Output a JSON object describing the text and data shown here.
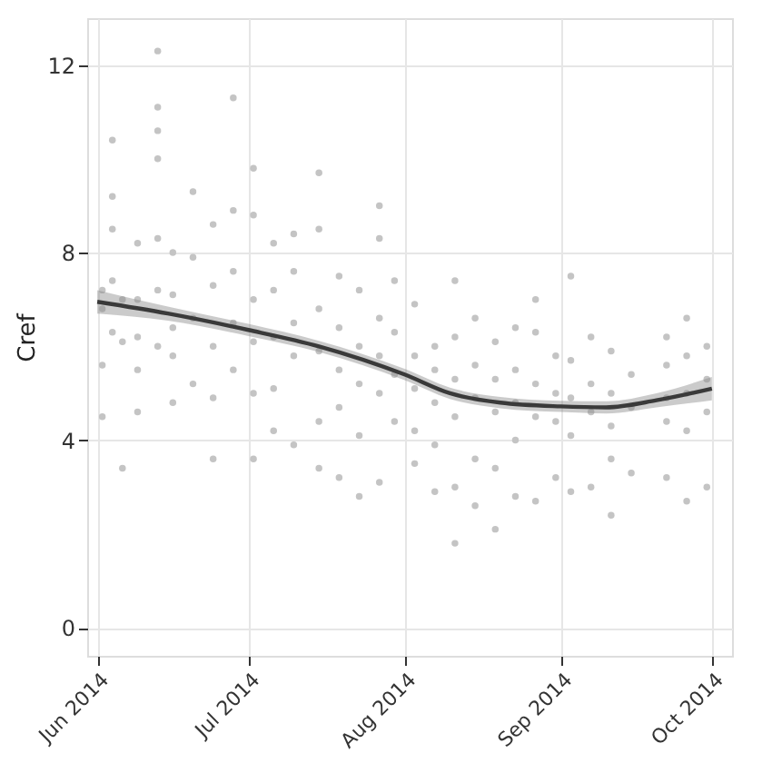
{
  "chart_data": {
    "type": "scatter",
    "ylabel": "Cref",
    "xlim": [
      "2014-05-30",
      "2014-10-05"
    ],
    "ylim": [
      -0.6,
      13.0
    ],
    "xticks": [
      {
        "value": "2014-06-01",
        "label": "Jun 2014"
      },
      {
        "value": "2014-07-01",
        "label": "Jul 2014"
      },
      {
        "value": "2014-08-01",
        "label": "Aug 2014"
      },
      {
        "value": "2014-09-01",
        "label": "Sep 2014"
      },
      {
        "value": "2014-10-01",
        "label": "Oct 2014"
      }
    ],
    "yticks": [
      0,
      4,
      8,
      12
    ],
    "grid": true,
    "series": [
      {
        "type": "scatter",
        "marker": "circle",
        "color": "#c4c4c4",
        "x": [
          "2014-06-02",
          "2014-06-02",
          "2014-06-02",
          "2014-06-02",
          "2014-06-04",
          "2014-06-04",
          "2014-06-04",
          "2014-06-04",
          "2014-06-04",
          "2014-06-06",
          "2014-06-06",
          "2014-06-06",
          "2014-06-09",
          "2014-06-09",
          "2014-06-09",
          "2014-06-09",
          "2014-06-09",
          "2014-06-13",
          "2014-06-13",
          "2014-06-13",
          "2014-06-13",
          "2014-06-13",
          "2014-06-13",
          "2014-06-13",
          "2014-06-16",
          "2014-06-16",
          "2014-06-16",
          "2014-06-16",
          "2014-06-16",
          "2014-06-20",
          "2014-06-20",
          "2014-06-20",
          "2014-06-20",
          "2014-06-24",
          "2014-06-24",
          "2014-06-24",
          "2014-06-24",
          "2014-06-24",
          "2014-06-28",
          "2014-06-28",
          "2014-06-28",
          "2014-06-28",
          "2014-06-28",
          "2014-07-02",
          "2014-07-02",
          "2014-07-02",
          "2014-07-02",
          "2014-07-02",
          "2014-07-02",
          "2014-07-06",
          "2014-07-06",
          "2014-07-06",
          "2014-07-06",
          "2014-07-06",
          "2014-07-10",
          "2014-07-10",
          "2014-07-10",
          "2014-07-10",
          "2014-07-10",
          "2014-07-15",
          "2014-07-15",
          "2014-07-15",
          "2014-07-15",
          "2014-07-15",
          "2014-07-15",
          "2014-07-19",
          "2014-07-19",
          "2014-07-19",
          "2014-07-19",
          "2014-07-19",
          "2014-07-23",
          "2014-07-23",
          "2014-07-23",
          "2014-07-23",
          "2014-07-23",
          "2014-07-27",
          "2014-07-27",
          "2014-07-27",
          "2014-07-27",
          "2014-07-27",
          "2014-07-27",
          "2014-07-30",
          "2014-07-30",
          "2014-07-30",
          "2014-07-30",
          "2014-08-03",
          "2014-08-03",
          "2014-08-03",
          "2014-08-03",
          "2014-08-03",
          "2014-08-07",
          "2014-08-07",
          "2014-08-07",
          "2014-08-07",
          "2014-08-07",
          "2014-08-11",
          "2014-08-11",
          "2014-08-11",
          "2014-08-11",
          "2014-08-11",
          "2014-08-11",
          "2014-08-15",
          "2014-08-15",
          "2014-08-15",
          "2014-08-15",
          "2014-08-15",
          "2014-08-19",
          "2014-08-19",
          "2014-08-19",
          "2014-08-19",
          "2014-08-19",
          "2014-08-23",
          "2014-08-23",
          "2014-08-23",
          "2014-08-23",
          "2014-08-23",
          "2014-08-27",
          "2014-08-27",
          "2014-08-27",
          "2014-08-27",
          "2014-08-27",
          "2014-08-31",
          "2014-08-31",
          "2014-08-31",
          "2014-08-31",
          "2014-09-03",
          "2014-09-03",
          "2014-09-03",
          "2014-09-03",
          "2014-09-03",
          "2014-09-07",
          "2014-09-07",
          "2014-09-07",
          "2014-09-07",
          "2014-09-11",
          "2014-09-11",
          "2014-09-11",
          "2014-09-11",
          "2014-09-11",
          "2014-09-15",
          "2014-09-15",
          "2014-09-15",
          "2014-09-22",
          "2014-09-22",
          "2014-09-22",
          "2014-09-22",
          "2014-09-22",
          "2014-09-26",
          "2014-09-26",
          "2014-09-26",
          "2014-09-26",
          "2014-09-26",
          "2014-09-30",
          "2014-09-30",
          "2014-09-30",
          "2014-09-30"
        ],
        "values": [
          7.2,
          6.8,
          5.6,
          4.5,
          10.4,
          9.2,
          8.5,
          7.4,
          6.3,
          3.4,
          6.1,
          7.0,
          8.2,
          7.0,
          6.2,
          5.5,
          4.6,
          12.3,
          11.1,
          10.6,
          10.0,
          8.3,
          7.2,
          6.0,
          8.0,
          7.1,
          6.4,
          5.8,
          4.8,
          9.3,
          7.9,
          6.6,
          5.2,
          8.6,
          7.3,
          6.0,
          4.9,
          3.6,
          11.3,
          8.9,
          7.6,
          6.5,
          5.5,
          9.8,
          8.8,
          7.0,
          6.1,
          5.0,
          3.6,
          8.2,
          7.2,
          6.2,
          5.1,
          4.2,
          8.4,
          7.6,
          6.5,
          5.8,
          3.9,
          9.7,
          8.5,
          6.8,
          5.9,
          4.4,
          3.4,
          7.5,
          6.4,
          5.5,
          4.7,
          3.2,
          7.2,
          6.0,
          5.2,
          4.1,
          2.8,
          9.0,
          8.3,
          6.6,
          5.8,
          5.0,
          3.1,
          7.4,
          6.3,
          5.4,
          4.4,
          6.9,
          5.8,
          5.1,
          4.2,
          3.5,
          6.0,
          5.5,
          4.8,
          3.9,
          2.9,
          7.4,
          6.2,
          5.3,
          4.5,
          3.0,
          1.8,
          6.6,
          5.6,
          4.9,
          3.6,
          2.6,
          6.1,
          5.3,
          4.6,
          3.4,
          2.1,
          6.4,
          5.5,
          4.8,
          4.0,
          2.8,
          7.0,
          6.3,
          5.2,
          4.5,
          2.7,
          5.8,
          5.0,
          4.4,
          3.2,
          7.5,
          5.7,
          4.9,
          4.1,
          2.9,
          6.2,
          5.2,
          4.6,
          3.0,
          5.9,
          5.0,
          4.3,
          3.6,
          2.4,
          5.4,
          4.7,
          3.3,
          6.2,
          5.6,
          4.9,
          4.4,
          3.2,
          6.6,
          5.8,
          5.0,
          4.2,
          2.7,
          6.0,
          5.3,
          4.6,
          3.0
        ]
      },
      {
        "type": "line",
        "marker": "none",
        "line_style": "solid",
        "color": "#3a3a3a",
        "x": [
          "2014-06-01",
          "2014-06-15",
          "2014-07-01",
          "2014-07-15",
          "2014-08-01",
          "2014-08-10",
          "2014-08-20",
          "2014-09-01",
          "2014-09-10",
          "2014-09-20",
          "2014-10-01"
        ],
        "values": [
          6.95,
          6.7,
          6.35,
          6.0,
          5.4,
          5.0,
          4.8,
          4.72,
          4.7,
          4.85,
          5.1
        ],
        "lower": [
          6.7,
          6.55,
          6.22,
          5.88,
          5.28,
          4.88,
          4.68,
          4.6,
          4.57,
          4.7,
          4.85
        ],
        "upper": [
          7.2,
          6.85,
          6.48,
          6.12,
          5.52,
          5.12,
          4.92,
          4.84,
          4.83,
          5.0,
          5.35
        ]
      }
    ]
  }
}
